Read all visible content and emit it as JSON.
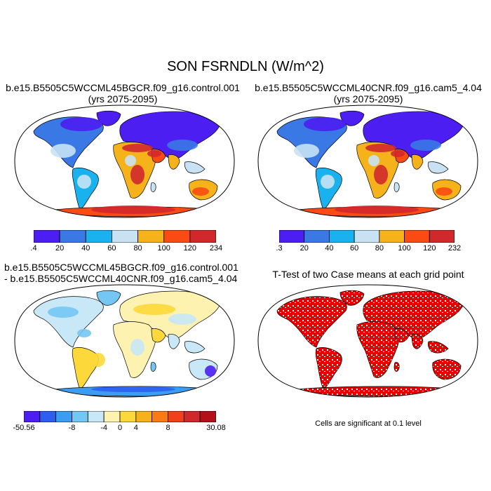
{
  "title": "SON FSRNDLN (W/m^2)",
  "panels": [
    {
      "id": "p1",
      "title_lines": [
        "b.e15.B5505C5WCCML45BGCR.f09_g16.control.001",
        "(yrs 2075-2095)"
      ],
      "colorbar": {
        "labels": [
          ".4",
          "20",
          "40",
          "60",
          "80",
          "100",
          "120",
          "234"
        ],
        "colors": [
          "#4d1ef2",
          "#3a78e6",
          "#1ab2ee",
          "#c8e2f4",
          "#f5b21b",
          "#fa4b14",
          "#d1282c"
        ]
      }
    },
    {
      "id": "p2",
      "title_lines": [
        "b.e15.B5505C5WCCML40CNR.f09_g16.cam5_4.04",
        "(yrs 2075-2095)"
      ],
      "colorbar": {
        "labels": [
          ".3",
          "20",
          "40",
          "60",
          "80",
          "100",
          "120",
          "232"
        ],
        "colors": [
          "#4d1ef2",
          "#3a78e6",
          "#1ab2ee",
          "#c8e2f4",
          "#f5b21b",
          "#fa4b14",
          "#d1282c"
        ]
      }
    },
    {
      "id": "p3",
      "title_lines": [
        "b.e15.B5505C5WCCML45BGCR.f09_g16.control.001",
        "- b.e15.B5505C5WCCML40CNR.f09_g16.cam5_4.04"
      ],
      "colorbar": {
        "labels": [
          "-50.56",
          "-8",
          "-4",
          "0",
          "4",
          "8",
          "30.08"
        ],
        "colors": [
          "#4d1ef2",
          "#2d5ef0",
          "#3a9df2",
          "#74c6f3",
          "#c8e8f7",
          "#fef2b0",
          "#fdd83a",
          "#f5b21b",
          "#fa7a14",
          "#f0401c",
          "#d1282c",
          "#b3101a"
        ]
      }
    },
    {
      "id": "p4",
      "title_lines": [
        "T-Test of two Case means at each grid point"
      ],
      "note": "Cells are significant at 0.1 level",
      "colors": {
        "significant": "#e50000"
      }
    }
  ]
}
